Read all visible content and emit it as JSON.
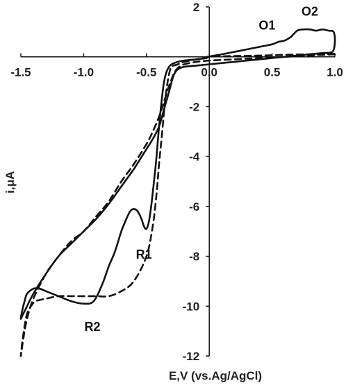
{
  "chart_data": {
    "type": "line",
    "xlabel": "E,V (vs.Ag/AgCl)",
    "ylabel": "i,μA",
    "xlim": [
      -1.5,
      1.0
    ],
    "ylim": [
      -12,
      2
    ],
    "x_ticks": [
      -1.5,
      -1.0,
      -0.5,
      0.0,
      0.5,
      1.0
    ],
    "x_tick_labels": [
      "-1.5",
      "-1.0",
      "-0.5",
      "0.0",
      "0.5",
      "1.0"
    ],
    "y_ticks": [
      2,
      0,
      -2,
      -4,
      -6,
      -8,
      -10,
      -12
    ],
    "y_tick_labels": [
      "2",
      "0",
      "-2",
      "-4",
      "-6",
      "-8",
      "-10",
      "-12"
    ],
    "grid": false,
    "legend": "none",
    "series": [
      {
        "style": "solid",
        "color": "#111111",
        "x": [
          -0.02,
          0.1,
          0.25,
          0.4,
          0.5,
          0.55,
          0.6,
          0.65,
          0.7,
          0.75,
          0.8,
          0.85,
          0.9,
          0.95,
          0.99,
          1.0,
          0.98,
          0.9,
          0.8,
          0.7,
          0.6,
          0.5,
          0.4,
          0.3,
          0.2,
          0.1,
          0.0,
          -0.1,
          -0.2,
          -0.25,
          -0.28,
          -0.3,
          -0.32,
          -0.36,
          -0.4,
          -0.45,
          -0.5,
          -0.55,
          -0.6,
          -0.7,
          -0.8,
          -0.9,
          -1.0,
          -1.1,
          -1.2,
          -1.3,
          -1.4,
          -1.46,
          -1.49,
          -1.5,
          -1.49,
          -1.47,
          -1.45,
          -1.4,
          -1.35,
          -1.3,
          -1.2,
          -1.1,
          -1.0,
          -0.92,
          -0.85,
          -0.8,
          -0.75,
          -0.7,
          -0.66,
          -0.63,
          -0.6,
          -0.57,
          -0.54,
          -0.52,
          -0.5,
          -0.48,
          -0.46,
          -0.44,
          -0.42,
          -0.4,
          -0.38,
          -0.36,
          -0.34,
          -0.32,
          -0.3,
          -0.28,
          -0.25,
          -0.2,
          -0.1,
          -0.02
        ],
        "y": [
          0.0,
          0.1,
          0.25,
          0.4,
          0.5,
          0.6,
          0.65,
          0.8,
          1.05,
          1.1,
          1.1,
          1.05,
          1.1,
          1.05,
          1.0,
          0.6,
          0.2,
          0.15,
          0.1,
          0.05,
          0.0,
          -0.05,
          -0.1,
          -0.15,
          -0.2,
          -0.25,
          -0.3,
          -0.35,
          -0.4,
          -0.5,
          -0.7,
          -1.0,
          -1.4,
          -2.1,
          -2.8,
          -3.3,
          -3.7,
          -4.1,
          -4.5,
          -5.2,
          -5.9,
          -6.5,
          -7.0,
          -7.5,
          -8.0,
          -8.7,
          -9.5,
          -10.1,
          -10.4,
          -10.5,
          -10.2,
          -9.8,
          -9.5,
          -9.3,
          -9.3,
          -9.4,
          -9.6,
          -9.8,
          -9.9,
          -9.8,
          -9.1,
          -8.4,
          -7.8,
          -7.0,
          -6.5,
          -6.2,
          -6.1,
          -6.2,
          -6.5,
          -6.8,
          -6.9,
          -6.6,
          -5.9,
          -5.0,
          -4.0,
          -2.8,
          -1.8,
          -1.0,
          -0.6,
          -0.4,
          -0.3,
          -0.25,
          -0.2,
          -0.15,
          -0.1,
          -0.05
        ]
      },
      {
        "style": "dashed",
        "color": "#111111",
        "x": [
          1.0,
          0.9,
          0.8,
          0.6,
          0.4,
          0.2,
          0.0,
          -0.1,
          -0.2,
          -0.25,
          -0.28,
          -0.3,
          -0.33,
          -0.36,
          -0.4,
          -0.45,
          -0.5,
          -0.6,
          -0.7,
          -0.8,
          -0.9,
          -1.0,
          -1.1,
          -1.2,
          -1.3,
          -1.4,
          -1.45,
          -1.48,
          -1.5,
          -1.49,
          -1.47,
          -1.45,
          -1.42,
          -1.38,
          -1.3,
          -1.2,
          -1.1,
          -1.0,
          -0.9,
          -0.8,
          -0.7,
          -0.6,
          -0.5,
          -0.45,
          -0.42,
          -0.4,
          -0.38,
          -0.36,
          -0.34,
          -0.32,
          -0.3,
          -0.25,
          -0.2,
          -0.1,
          0.0,
          0.2,
          0.4,
          0.6,
          0.8,
          1.0
        ],
        "y": [
          0.1,
          0.08,
          0.05,
          0.0,
          -0.05,
          -0.1,
          -0.15,
          -0.2,
          -0.3,
          -0.45,
          -0.65,
          -0.9,
          -1.3,
          -1.8,
          -2.4,
          -3.0,
          -3.5,
          -4.3,
          -5.0,
          -5.8,
          -6.4,
          -7.0,
          -7.4,
          -8.0,
          -8.7,
          -9.7,
          -10.5,
          -11.3,
          -12.0,
          -11.5,
          -10.8,
          -10.3,
          -10.0,
          -9.8,
          -9.7,
          -9.6,
          -9.6,
          -9.6,
          -9.6,
          -9.6,
          -9.4,
          -9.0,
          -8.0,
          -6.8,
          -5.5,
          -4.3,
          -3.3,
          -2.2,
          -1.3,
          -0.7,
          -0.4,
          -0.3,
          -0.2,
          -0.1,
          0.0,
          0.03,
          0.05,
          0.08,
          0.1,
          0.12
        ]
      }
    ],
    "annotations": [
      {
        "text": "O1",
        "x": 0.46,
        "y": 1.1
      },
      {
        "text": "O2",
        "x": 0.8,
        "y": 1.65
      },
      {
        "text": "R1",
        "x": -0.52,
        "y": -8.1
      },
      {
        "text": "R2",
        "x": -0.93,
        "y": -11.0
      }
    ]
  }
}
